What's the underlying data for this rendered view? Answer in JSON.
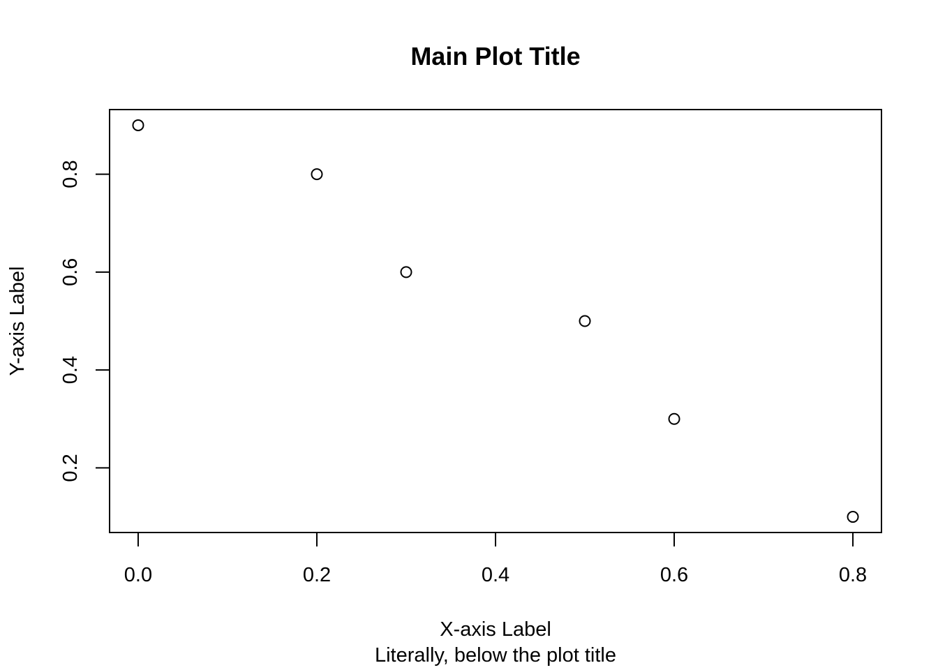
{
  "chart_data": {
    "type": "scatter",
    "title": "Main Plot Title",
    "subtitle": "Literally, below the plot title",
    "xlabel": "X-axis Label",
    "ylabel": "Y-axis Label",
    "x": [
      0.0,
      0.2,
      0.3,
      0.5,
      0.6,
      0.8
    ],
    "y": [
      0.9,
      0.8,
      0.6,
      0.5,
      0.3,
      0.1
    ],
    "xlim": [
      -0.032,
      0.832
    ],
    "ylim": [
      0.068,
      0.932
    ],
    "x_ticks": [
      0.0,
      0.2,
      0.4,
      0.6,
      0.8
    ],
    "x_tick_labels": [
      "0.0",
      "0.2",
      "0.4",
      "0.6",
      "0.8"
    ],
    "y_ticks": [
      0.2,
      0.4,
      0.6,
      0.8
    ],
    "y_tick_labels": [
      "0.2",
      "0.4",
      "0.6",
      "0.8"
    ],
    "marker": "open-circle",
    "grid": false,
    "legend": "none"
  }
}
